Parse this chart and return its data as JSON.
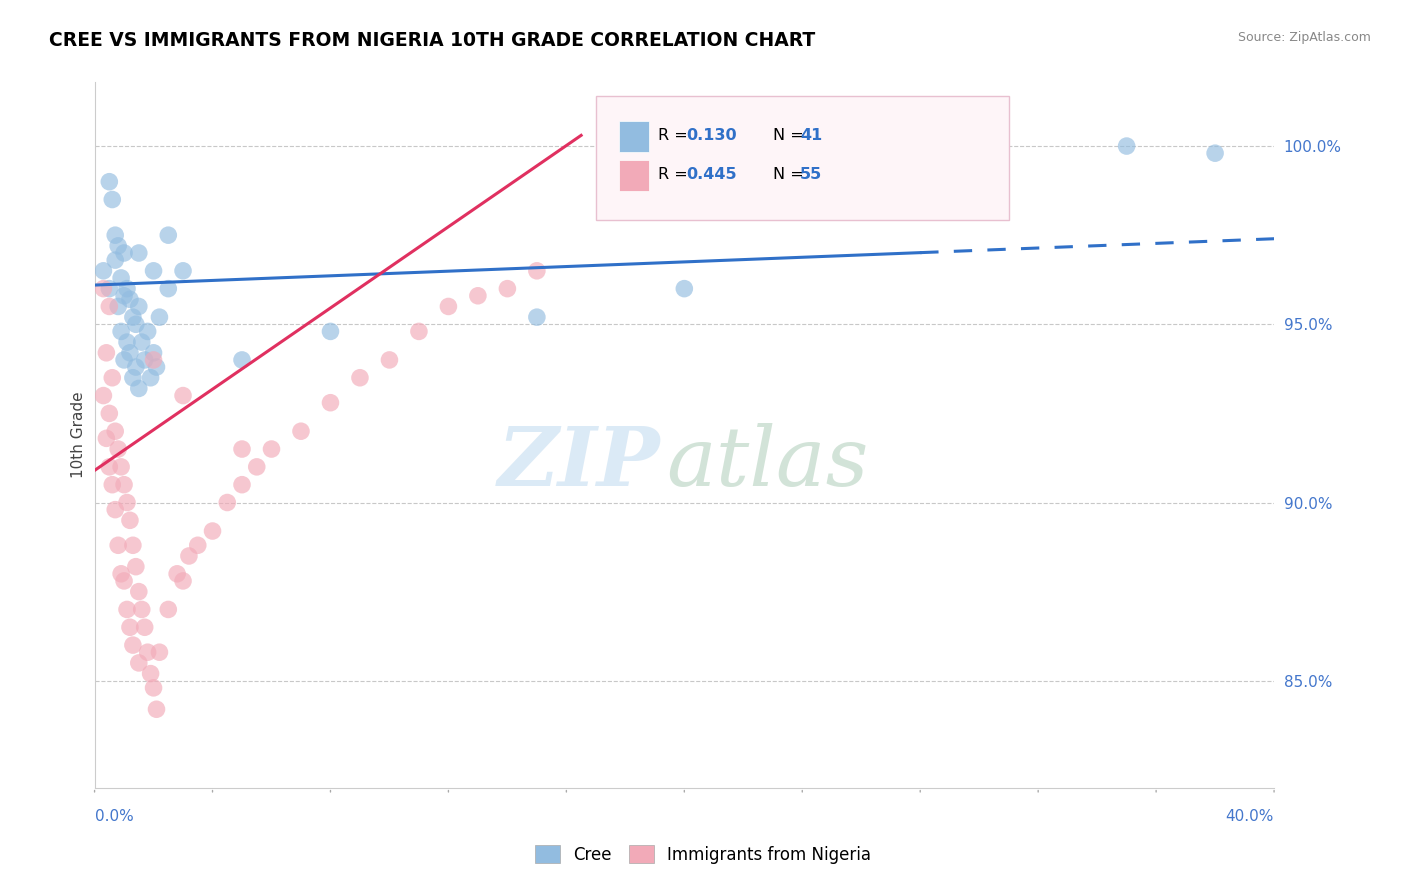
{
  "title": "CREE VS IMMIGRANTS FROM NIGERIA 10TH GRADE CORRELATION CHART",
  "source": "Source: ZipAtlas.com",
  "ylabel": "10th Grade",
  "ylabel_right_labels": [
    "85.0%",
    "90.0%",
    "95.0%",
    "100.0%"
  ],
  "ylabel_right_values": [
    0.85,
    0.9,
    0.95,
    1.0
  ],
  "xmin": 0.0,
  "xmax": 0.4,
  "ymin": 0.82,
  "ymax": 1.018,
  "legend_blue_r": "0.130",
  "legend_blue_n": "41",
  "legend_pink_r": "0.445",
  "legend_pink_n": "55",
  "blue_color": "#92bce0",
  "pink_color": "#f2aab8",
  "blue_line_color": "#3070c8",
  "pink_line_color": "#e03060",
  "blue_line_solid_end": 0.28,
  "cree_x": [
    0.003,
    0.005,
    0.005,
    0.006,
    0.007,
    0.007,
    0.008,
    0.008,
    0.009,
    0.009,
    0.01,
    0.01,
    0.01,
    0.011,
    0.011,
    0.012,
    0.012,
    0.013,
    0.013,
    0.014,
    0.014,
    0.015,
    0.015,
    0.016,
    0.017,
    0.018,
    0.019,
    0.02,
    0.021,
    0.022,
    0.015,
    0.02,
    0.025,
    0.025,
    0.03,
    0.05,
    0.08,
    0.15,
    0.2,
    0.35,
    0.38
  ],
  "cree_y": [
    0.965,
    0.99,
    0.96,
    0.985,
    0.975,
    0.968,
    0.972,
    0.955,
    0.963,
    0.948,
    0.97,
    0.958,
    0.94,
    0.96,
    0.945,
    0.957,
    0.942,
    0.952,
    0.935,
    0.95,
    0.938,
    0.955,
    0.932,
    0.945,
    0.94,
    0.948,
    0.935,
    0.942,
    0.938,
    0.952,
    0.97,
    0.965,
    0.96,
    0.975,
    0.965,
    0.94,
    0.948,
    0.952,
    0.96,
    1.0,
    0.998
  ],
  "nigeria_x": [
    0.003,
    0.004,
    0.004,
    0.005,
    0.005,
    0.006,
    0.006,
    0.007,
    0.007,
    0.008,
    0.008,
    0.009,
    0.009,
    0.01,
    0.01,
    0.011,
    0.011,
    0.012,
    0.012,
    0.013,
    0.013,
    0.014,
    0.015,
    0.015,
    0.016,
    0.017,
    0.018,
    0.019,
    0.02,
    0.021,
    0.022,
    0.025,
    0.028,
    0.03,
    0.032,
    0.035,
    0.04,
    0.045,
    0.05,
    0.055,
    0.06,
    0.07,
    0.08,
    0.09,
    0.1,
    0.11,
    0.12,
    0.13,
    0.14,
    0.15,
    0.003,
    0.005,
    0.02,
    0.03,
    0.05
  ],
  "nigeria_y": [
    0.93,
    0.918,
    0.942,
    0.925,
    0.91,
    0.935,
    0.905,
    0.92,
    0.898,
    0.915,
    0.888,
    0.91,
    0.88,
    0.905,
    0.878,
    0.9,
    0.87,
    0.895,
    0.865,
    0.888,
    0.86,
    0.882,
    0.875,
    0.855,
    0.87,
    0.865,
    0.858,
    0.852,
    0.848,
    0.842,
    0.858,
    0.87,
    0.88,
    0.878,
    0.885,
    0.888,
    0.892,
    0.9,
    0.905,
    0.91,
    0.915,
    0.92,
    0.928,
    0.935,
    0.94,
    0.948,
    0.955,
    0.958,
    0.96,
    0.965,
    0.96,
    0.955,
    0.94,
    0.93,
    0.915
  ]
}
